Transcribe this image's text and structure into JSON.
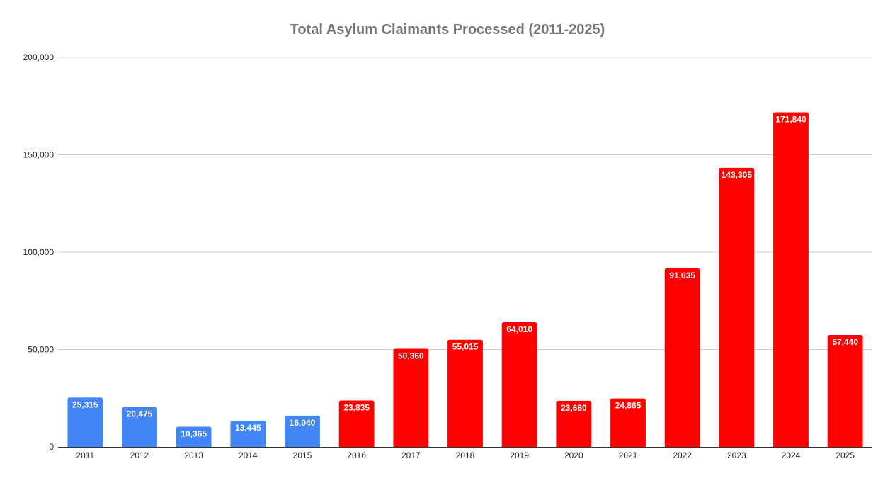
{
  "chart_data": {
    "type": "bar",
    "title": "Total Asylum Claimants Processed (2011-2025)",
    "xlabel": "",
    "ylabel": "",
    "categories": [
      "2011",
      "2012",
      "2013",
      "2014",
      "2015",
      "2016",
      "2017",
      "2018",
      "2019",
      "2020",
      "2021",
      "2022",
      "2023",
      "2024",
      "2025"
    ],
    "values": [
      25315,
      20475,
      10365,
      13445,
      16040,
      23835,
      50360,
      55015,
      64010,
      23680,
      24865,
      91635,
      143305,
      171840,
      57440
    ],
    "data_labels": [
      "25,315",
      "20,475",
      "10,365",
      "13,445",
      "16,040",
      "23,835",
      "50,360",
      "55,015",
      "64,010",
      "23,680",
      "24,865",
      "91,635",
      "143,305",
      "171,840",
      "57,440"
    ],
    "bar_colors": [
      "#4285f4",
      "#4285f4",
      "#4285f4",
      "#4285f4",
      "#4285f4",
      "#ff0000",
      "#ff0000",
      "#ff0000",
      "#ff0000",
      "#ff0000",
      "#ff0000",
      "#ff0000",
      "#ff0000",
      "#ff0000",
      "#ff0000"
    ],
    "ylim": [
      0,
      200000
    ],
    "yticks": [
      0,
      50000,
      100000,
      150000,
      200000
    ],
    "ytick_labels": [
      "0",
      "50,000",
      "100,000",
      "150,000",
      "200,000"
    ],
    "grid": true,
    "legend": "none"
  }
}
